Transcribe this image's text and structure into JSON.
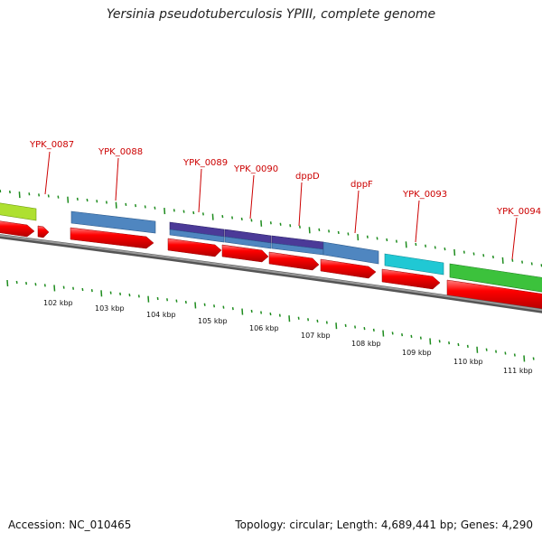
{
  "title": "Yersinia pseudotuberculosis YPIII, complete genome",
  "footer": {
    "accession": "Accession: NC_010465",
    "summary": "Topology: circular; Length: 4,689,441 bp; Genes: 4,290"
  },
  "colors": {
    "backbone": "#808080",
    "cds": "#ff0000",
    "gene_label": "#cc0000",
    "tick": "#1e8c1e"
  },
  "scale_ticks": [
    "102 kbp",
    "103 kbp",
    "104 kbp",
    "105 kbp",
    "106 kbp",
    "107 kbp",
    "108 kbp",
    "109 kbp",
    "110 kbp",
    "111 kbp"
  ],
  "gene_labels": [
    "YPK_0087",
    "YPK_0088",
    "YPK_0089",
    "YPK_0090",
    "dppD",
    "dppF",
    "YPK_0093",
    "YPK_0094"
  ],
  "feature_colors": {
    "yellowgreen": "#aee030",
    "steelblue": "#4f86c0",
    "purple": "#4b3a98",
    "cyan": "#20c8d4",
    "green": "#3cc23c"
  }
}
